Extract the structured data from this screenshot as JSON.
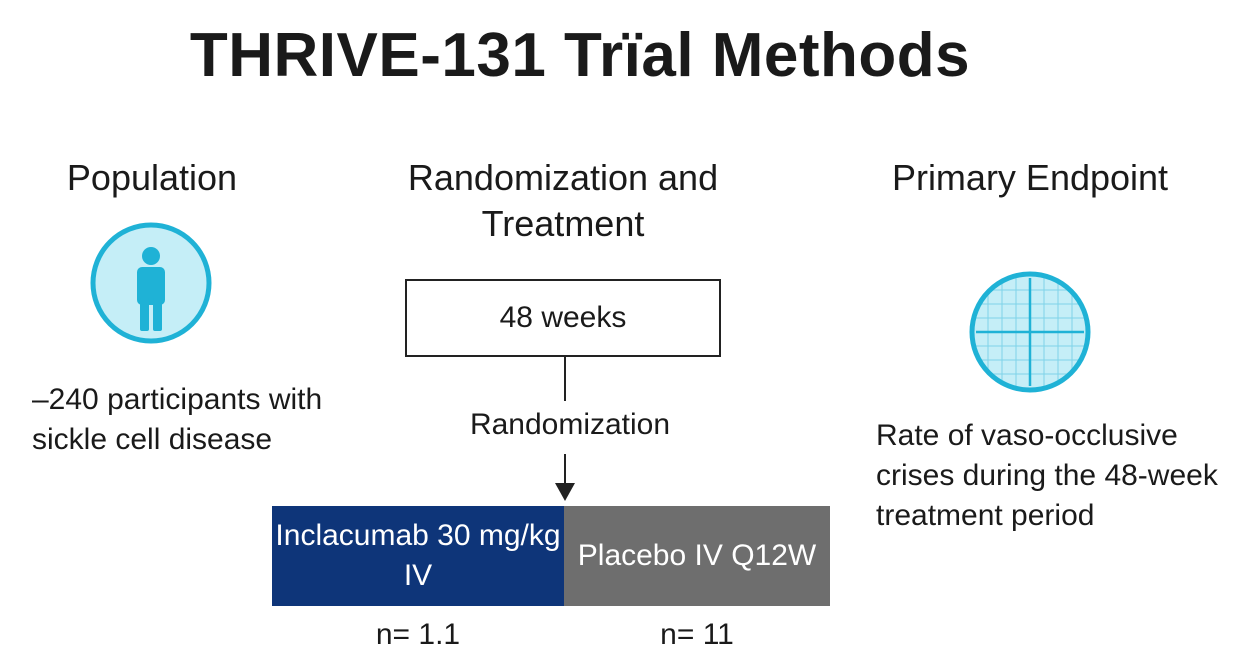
{
  "title": "THRIVE-131 Trïal Methods",
  "population": {
    "heading": "Population",
    "icon": "person-icon",
    "description": "–240 participants with sickle cell disease"
  },
  "randomization": {
    "heading": "Randomization and Treatment",
    "duration_box": "48 weeks",
    "label": "Randomization",
    "arms": [
      {
        "label": "Inclacumab 30 mg/kg IV",
        "n": "n= 1.1",
        "color": "#0e3579"
      },
      {
        "label": "Placebo IV Q12W",
        "n": "n= 11",
        "color": "#6e6e6e"
      }
    ]
  },
  "endpoint": {
    "heading": "Primary Endpoint",
    "icon": "grid-target-icon",
    "description": "Rate of vaso-occlusive crises during the 48-week treatment period"
  },
  "colors": {
    "icon_fill": "#c5eef7",
    "icon_stroke": "#1fb2d6"
  }
}
